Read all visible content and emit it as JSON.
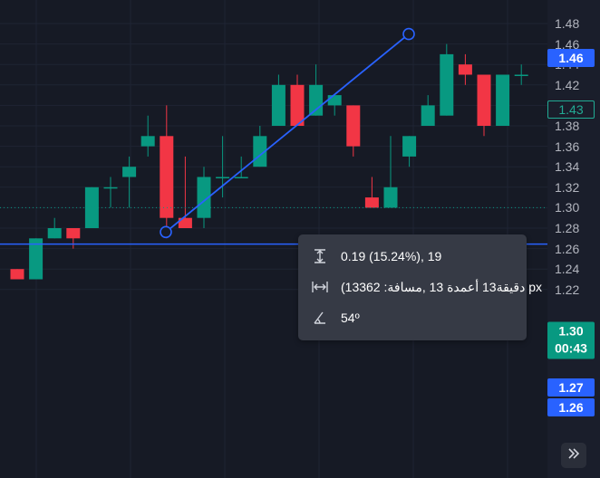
{
  "price_axis": {
    "ticks": [
      "1.48",
      "1.46",
      "1.44",
      "1.42",
      "1.40",
      "1.38",
      "1.36",
      "1.34",
      "1.32",
      "1.30",
      "1.28",
      "1.26",
      "1.24",
      "1.22"
    ],
    "labels": {
      "drawing_top": "1.46",
      "last_value": "1.43",
      "current_price": "1.30",
      "countdown": "00:43",
      "drawing_low": "1.27",
      "horizontal_line": "1.26"
    }
  },
  "colors": {
    "up": "#089981",
    "down": "#f23645",
    "drawing": "#2962ff",
    "background": "#161a25"
  },
  "measure_tooltip": {
    "price_change": "0.19 (15.24%), 19",
    "bars_distance": "(13دقيقة13 أعمدة 13 ,مسافة: 362 px",
    "angle": "54º"
  },
  "icons": [
    "price-range-icon",
    "bars-range-icon",
    "angle-icon",
    "go-to-realtime-icon"
  ],
  "chart_data": {
    "type": "candlestick",
    "ylim": [
      1.22,
      1.48
    ],
    "candles": [
      {
        "o": 1.24,
        "h": 1.24,
        "l": 1.23,
        "c": 1.23
      },
      {
        "o": 1.23,
        "h": 1.27,
        "l": 1.23,
        "c": 1.27
      },
      {
        "o": 1.27,
        "h": 1.29,
        "l": 1.27,
        "c": 1.28
      },
      {
        "o": 1.28,
        "h": 1.28,
        "l": 1.26,
        "c": 1.27
      },
      {
        "o": 1.28,
        "h": 1.32,
        "l": 1.28,
        "c": 1.32
      },
      {
        "o": 1.32,
        "h": 1.33,
        "l": 1.3,
        "c": 1.32
      },
      {
        "o": 1.33,
        "h": 1.35,
        "l": 1.3,
        "c": 1.34
      },
      {
        "o": 1.36,
        "h": 1.39,
        "l": 1.35,
        "c": 1.37
      },
      {
        "o": 1.37,
        "h": 1.4,
        "l": 1.27,
        "c": 1.29
      },
      {
        "o": 1.29,
        "h": 1.35,
        "l": 1.28,
        "c": 1.28
      },
      {
        "o": 1.29,
        "h": 1.34,
        "l": 1.28,
        "c": 1.33
      },
      {
        "o": 1.33,
        "h": 1.37,
        "l": 1.31,
        "c": 1.33
      },
      {
        "o": 1.33,
        "h": 1.35,
        "l": 1.33,
        "c": 1.33
      },
      {
        "o": 1.34,
        "h": 1.38,
        "l": 1.34,
        "c": 1.37
      },
      {
        "o": 1.38,
        "h": 1.43,
        "l": 1.38,
        "c": 1.42
      },
      {
        "o": 1.42,
        "h": 1.43,
        "l": 1.38,
        "c": 1.38
      },
      {
        "o": 1.39,
        "h": 1.44,
        "l": 1.39,
        "c": 1.42
      },
      {
        "o": 1.4,
        "h": 1.41,
        "l": 1.39,
        "c": 1.41
      },
      {
        "o": 1.4,
        "h": 1.4,
        "l": 1.35,
        "c": 1.36
      },
      {
        "o": 1.31,
        "h": 1.33,
        "l": 1.3,
        "c": 1.3
      },
      {
        "o": 1.3,
        "h": 1.37,
        "l": 1.3,
        "c": 1.32
      },
      {
        "o": 1.35,
        "h": 1.37,
        "l": 1.34,
        "c": 1.37
      },
      {
        "o": 1.38,
        "h": 1.41,
        "l": 1.38,
        "c": 1.4
      },
      {
        "o": 1.39,
        "h": 1.46,
        "l": 1.39,
        "c": 1.45
      },
      {
        "o": 1.44,
        "h": 1.45,
        "l": 1.42,
        "c": 1.43
      },
      {
        "o": 1.43,
        "h": 1.43,
        "l": 1.37,
        "c": 1.38
      },
      {
        "o": 1.38,
        "h": 1.43,
        "l": 1.38,
        "c": 1.43
      },
      {
        "o": 1.43,
        "h": 1.44,
        "l": 1.42,
        "c": 1.43
      }
    ],
    "trend_line": {
      "from": 1.27,
      "to": 1.46
    },
    "horizontal_line": 1.26,
    "current_price_line": 1.3
  }
}
